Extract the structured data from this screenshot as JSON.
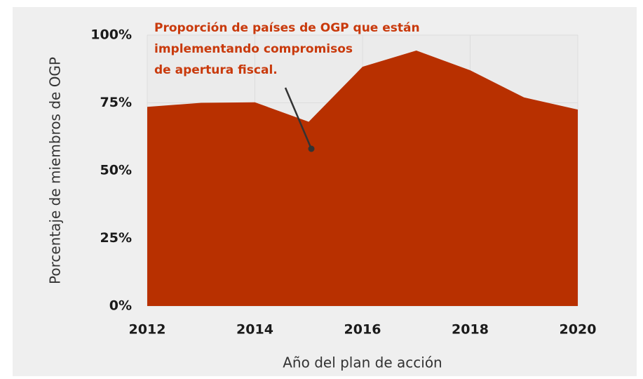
{
  "chart_data": {
    "type": "area",
    "x": [
      2012,
      2013,
      2014,
      2015,
      2016,
      2017,
      2018,
      2019,
      2020
    ],
    "values": [
      73.5,
      75,
      75.2,
      68,
      88.3,
      94.3,
      87,
      77,
      72.5
    ],
    "color": "#b83000",
    "xlabel": "Año del plan de acción",
    "ylabel": "Porcentaje de miembros de OGP",
    "xlim": [
      2012,
      2020
    ],
    "xticks": [
      2012,
      2014,
      2016,
      2018,
      2020
    ],
    "ylim": [
      0,
      100
    ],
    "yticks": [
      {
        "value": 0,
        "label": "0%"
      },
      {
        "value": 25,
        "label": "25%"
      },
      {
        "value": 50,
        "label": "50%"
      },
      {
        "value": 75,
        "label": "75%"
      },
      {
        "value": 100,
        "label": "100%"
      }
    ],
    "grid": true,
    "annotation": [
      "Proporción de países de OGP que están",
      "implementando compromisos",
      "de apertura fiscal."
    ],
    "annotation_color": "#c93a0c"
  }
}
